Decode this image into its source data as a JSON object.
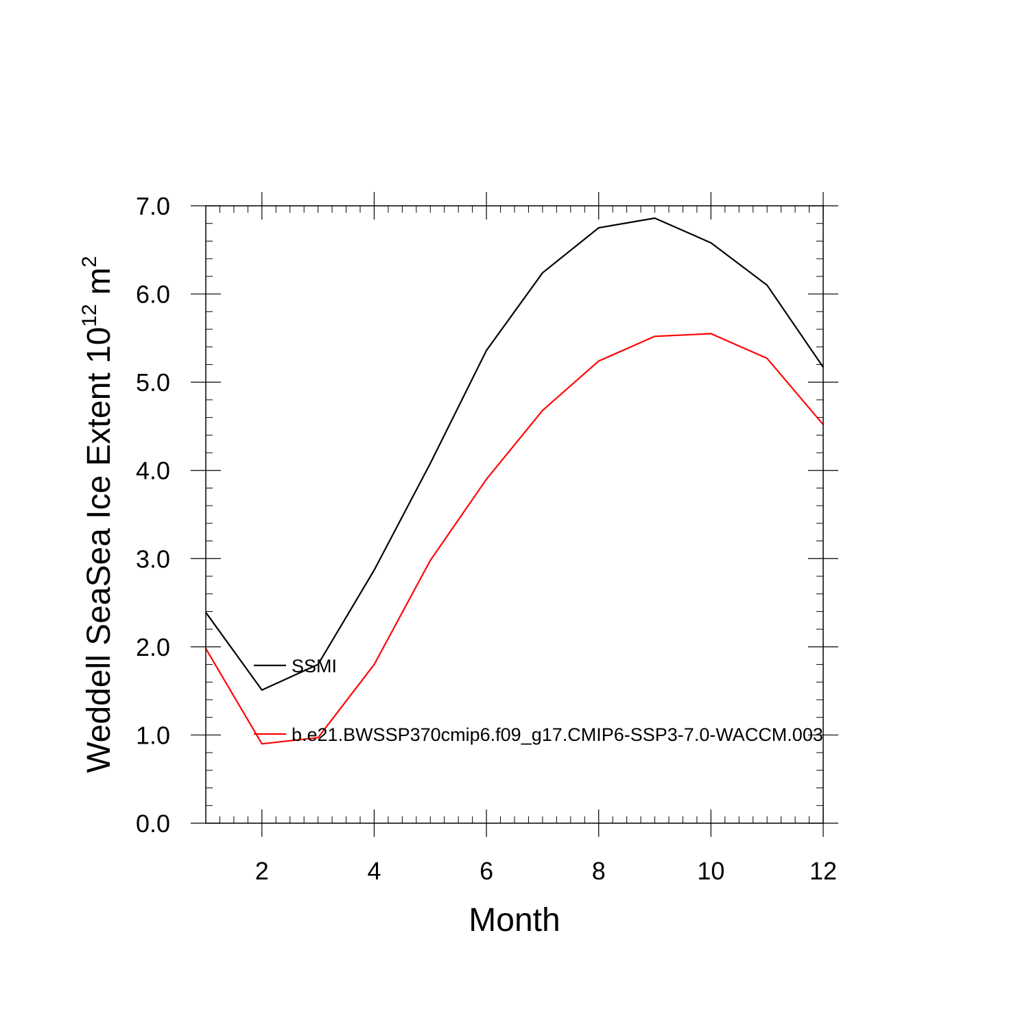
{
  "chart_data": {
    "type": "line",
    "title": "",
    "xlabel": "Month",
    "ylabel": {
      "main": "Weddell SeaSea Ice Extent 10",
      "superscript": "12",
      "unit": " m",
      "unit_superscript": "2"
    },
    "xlim": [
      1,
      12
    ],
    "ylim": [
      0.0,
      7.0
    ],
    "x_ticks": [
      2,
      4,
      6,
      8,
      10,
      12
    ],
    "y_ticks": [
      "0.0",
      "1.0",
      "2.0",
      "3.0",
      "4.0",
      "5.0",
      "6.0",
      "7.0"
    ],
    "grid": false,
    "legend_placement": "inside-left",
    "x": [
      1,
      2,
      3,
      4,
      5,
      6,
      7,
      8,
      9,
      10,
      11,
      12
    ],
    "series": [
      {
        "name": "SSMI",
        "color": "#000000",
        "values": [
          2.39,
          1.51,
          1.8,
          2.87,
          4.08,
          5.36,
          6.24,
          6.75,
          6.86,
          6.58,
          6.1,
          5.17
        ]
      },
      {
        "name": "b.e21.BWSSP370cmip6.f09_g17.CMIP6-SSP3-7.0-WACCM.003",
        "color": "#ff0000",
        "values": [
          1.98,
          0.9,
          0.97,
          1.8,
          2.98,
          3.9,
          4.68,
          5.24,
          5.52,
          5.55,
          5.27,
          4.52
        ]
      }
    ]
  }
}
